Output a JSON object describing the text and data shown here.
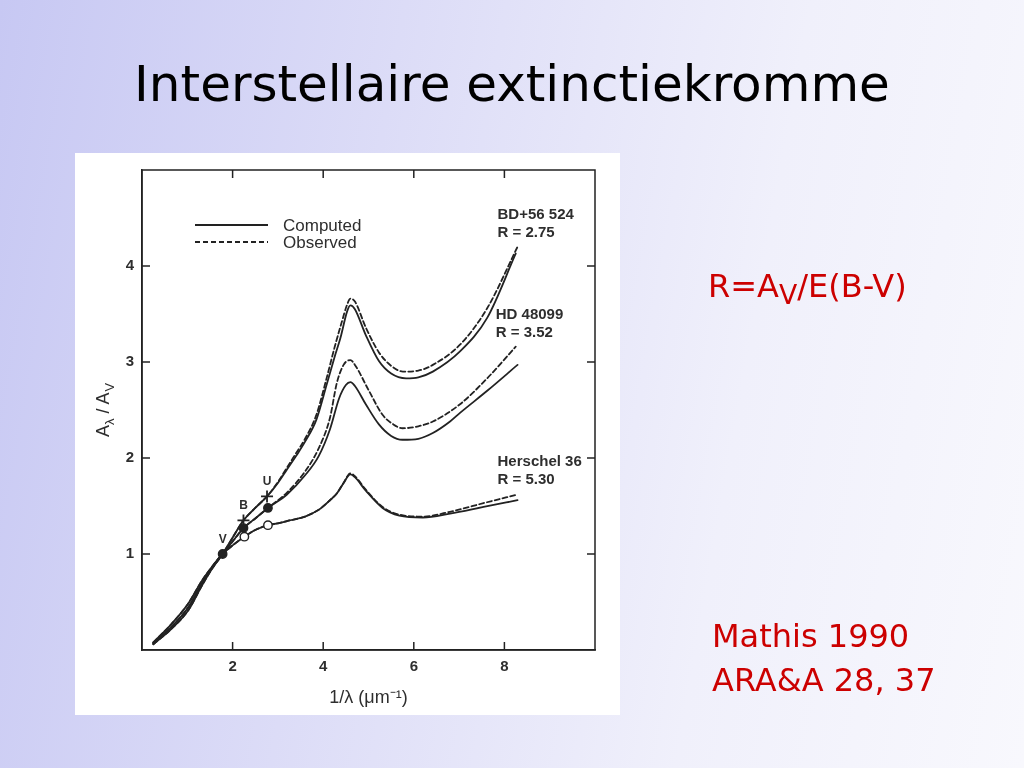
{
  "chart_data": {
    "type": "line",
    "title": "Interstellaire extinctiekromme",
    "xlabel": "1/λ (μm⁻¹)",
    "ylabel": "A$_{λ}$ / A$_{V}$",
    "xlim": [
      0,
      10
    ],
    "ylim": [
      0,
      5
    ],
    "xticks": [
      2,
      4,
      6,
      8
    ],
    "yticks": [
      1,
      2,
      3,
      4
    ],
    "legend": "top left",
    "series": [
      {
        "name": "Computed",
        "line_style": "solid",
        "color": "#222222",
        "x": [
          0.25,
          0.65,
          1.03,
          1.32,
          1.55,
          1.78,
          2.0,
          2.24,
          2.5,
          2.76,
          3.0,
          3.2,
          3.4,
          3.6,
          3.85,
          4.08,
          4.25,
          4.38,
          4.53,
          4.6,
          4.7,
          4.94,
          5.23,
          5.5,
          5.83,
          6.1,
          6.42,
          7.02,
          7.62,
          8.25
        ],
        "values": [
          0.06,
          0.22,
          0.42,
          0.67,
          0.85,
          1.0,
          1.17,
          1.35,
          1.48,
          1.6,
          1.74,
          1.88,
          2.02,
          2.17,
          2.4,
          2.77,
          3.05,
          3.25,
          3.53,
          3.59,
          3.55,
          3.28,
          3.01,
          2.88,
          2.83,
          2.84,
          2.9,
          3.11,
          3.46,
          4.13
        ]
      },
      {
        "name": "Observed",
        "line_style": "dashed",
        "color": "#222222",
        "x": [
          0.25,
          0.65,
          1.03,
          1.32,
          1.55,
          1.78,
          2.0,
          2.24,
          2.5,
          2.76,
          3.0,
          3.2,
          3.4,
          3.6,
          3.85,
          4.08,
          4.25,
          4.4,
          4.53,
          4.6,
          4.7,
          4.94,
          5.23,
          5.5,
          5.76,
          6.1,
          6.42,
          7.02,
          7.62,
          8.29
        ],
        "values": [
          0.06,
          0.22,
          0.42,
          0.67,
          0.85,
          1.0,
          1.17,
          1.35,
          1.48,
          1.6,
          1.75,
          1.9,
          2.05,
          2.2,
          2.45,
          2.84,
          3.15,
          3.4,
          3.6,
          3.66,
          3.63,
          3.36,
          3.1,
          2.96,
          2.9,
          2.91,
          2.97,
          3.18,
          3.56,
          4.2
        ]
      },
      {
        "line_style": "solid",
        "color": "#222222",
        "x": [
          0.25,
          0.65,
          1.03,
          1.32,
          1.55,
          1.78,
          2.0,
          2.24,
          2.5,
          2.78,
          3.2,
          3.6,
          3.9,
          4.15,
          4.35,
          4.5,
          4.6,
          4.7,
          4.94,
          5.23,
          5.5,
          5.75,
          6.1,
          6.42,
          6.8,
          7.02,
          7.62,
          8.29
        ],
        "values": [
          0.07,
          0.24,
          0.45,
          0.69,
          0.86,
          1.0,
          1.13,
          1.27,
          1.37,
          1.48,
          1.62,
          1.82,
          2.02,
          2.3,
          2.62,
          2.76,
          2.79,
          2.75,
          2.56,
          2.35,
          2.23,
          2.19,
          2.2,
          2.26,
          2.38,
          2.47,
          2.7,
          2.97
        ]
      },
      {
        "line_style": "dashed",
        "color": "#222222",
        "x": [
          0.25,
          0.65,
          1.03,
          1.32,
          1.55,
          1.78,
          2.0,
          2.24,
          2.5,
          2.78,
          3.2,
          3.6,
          3.9,
          4.15,
          4.3,
          4.45,
          4.6,
          4.7,
          5.01,
          5.31,
          5.55,
          5.75,
          6.1,
          6.42,
          7.02,
          7.62,
          8.25
        ],
        "values": [
          0.07,
          0.24,
          0.45,
          0.69,
          0.86,
          1.0,
          1.13,
          1.27,
          1.37,
          1.48,
          1.64,
          1.86,
          2.1,
          2.42,
          2.78,
          2.97,
          3.02,
          2.97,
          2.7,
          2.45,
          2.35,
          2.31,
          2.33,
          2.38,
          2.56,
          2.83,
          3.16
        ]
      },
      {
        "line_style": "solid",
        "color": "#222222",
        "x": [
          0.25,
          0.65,
          1.03,
          1.32,
          1.55,
          1.78,
          2.0,
          2.26,
          2.5,
          2.78,
          3.0,
          3.26,
          3.6,
          3.93,
          4.15,
          4.3,
          4.45,
          4.6,
          4.7,
          4.94,
          5.31,
          5.68,
          6.2,
          6.8,
          7.54,
          8.29
        ],
        "values": [
          0.08,
          0.27,
          0.49,
          0.72,
          0.87,
          1.0,
          1.09,
          1.18,
          1.25,
          1.3,
          1.32,
          1.35,
          1.39,
          1.47,
          1.56,
          1.63,
          1.74,
          1.83,
          1.8,
          1.66,
          1.48,
          1.4,
          1.38,
          1.42,
          1.49,
          1.56
        ]
      },
      {
        "line_style": "dashed",
        "color": "#222222",
        "x": [
          0.25,
          0.65,
          1.03,
          1.32,
          1.55,
          1.78,
          2.0,
          2.26,
          2.5,
          2.78,
          3.0,
          3.26,
          3.6,
          3.93,
          4.15,
          4.3,
          4.45,
          4.6,
          4.7,
          4.94,
          5.31,
          5.68,
          6.2,
          6.8,
          7.54,
          8.29
        ],
        "values": [
          0.08,
          0.27,
          0.49,
          0.72,
          0.87,
          1.0,
          1.09,
          1.18,
          1.25,
          1.3,
          1.32,
          1.35,
          1.39,
          1.47,
          1.56,
          1.63,
          1.74,
          1.84,
          1.81,
          1.67,
          1.49,
          1.41,
          1.39,
          1.44,
          1.53,
          1.62
        ]
      },
      {
        "type": "scatter",
        "marker": "cross",
        "color": "#222222",
        "x": [
          2.24,
          2.76
        ],
        "values": [
          1.35,
          1.6
        ]
      },
      {
        "type": "scatter",
        "marker": "circle",
        "color": "#222222",
        "x": [
          1.78,
          2.24,
          2.78
        ],
        "values": [
          1.0,
          1.27,
          1.48
        ]
      },
      {
        "type": "scatter",
        "marker": "circle",
        "color": "#ffffff",
        "x": [
          2.26,
          2.78
        ],
        "values": [
          1.18,
          1.3
        ]
      }
    ],
    "annotations": [
      "R=A$_{V}$/E(B-V)",
      "Mathis 1990",
      "ARA&A 28, 37",
      {
        "text": "BD+56 524",
        "x": 8.29,
        "y": 4.2
      },
      {
        "text": "R = 2.75",
        "x": 8.29,
        "y": 4.2
      },
      {
        "text": "HD 48099",
        "x": 8.25,
        "y": 3.16
      },
      {
        "text": "R = 3.52",
        "x": 8.25,
        "y": 3.16
      },
      {
        "text": "Herschel 36",
        "x": 8.29,
        "y": 1.62
      },
      {
        "text": "R = 5.30",
        "x": 8.29,
        "y": 1.62
      },
      {
        "text": "V",
        "x": 1.78,
        "y": 1.0
      },
      {
        "text": "B",
        "x": 2.24,
        "y": 1.35
      },
      {
        "text": "U",
        "x": 2.76,
        "y": 1.6
      }
    ]
  }
}
